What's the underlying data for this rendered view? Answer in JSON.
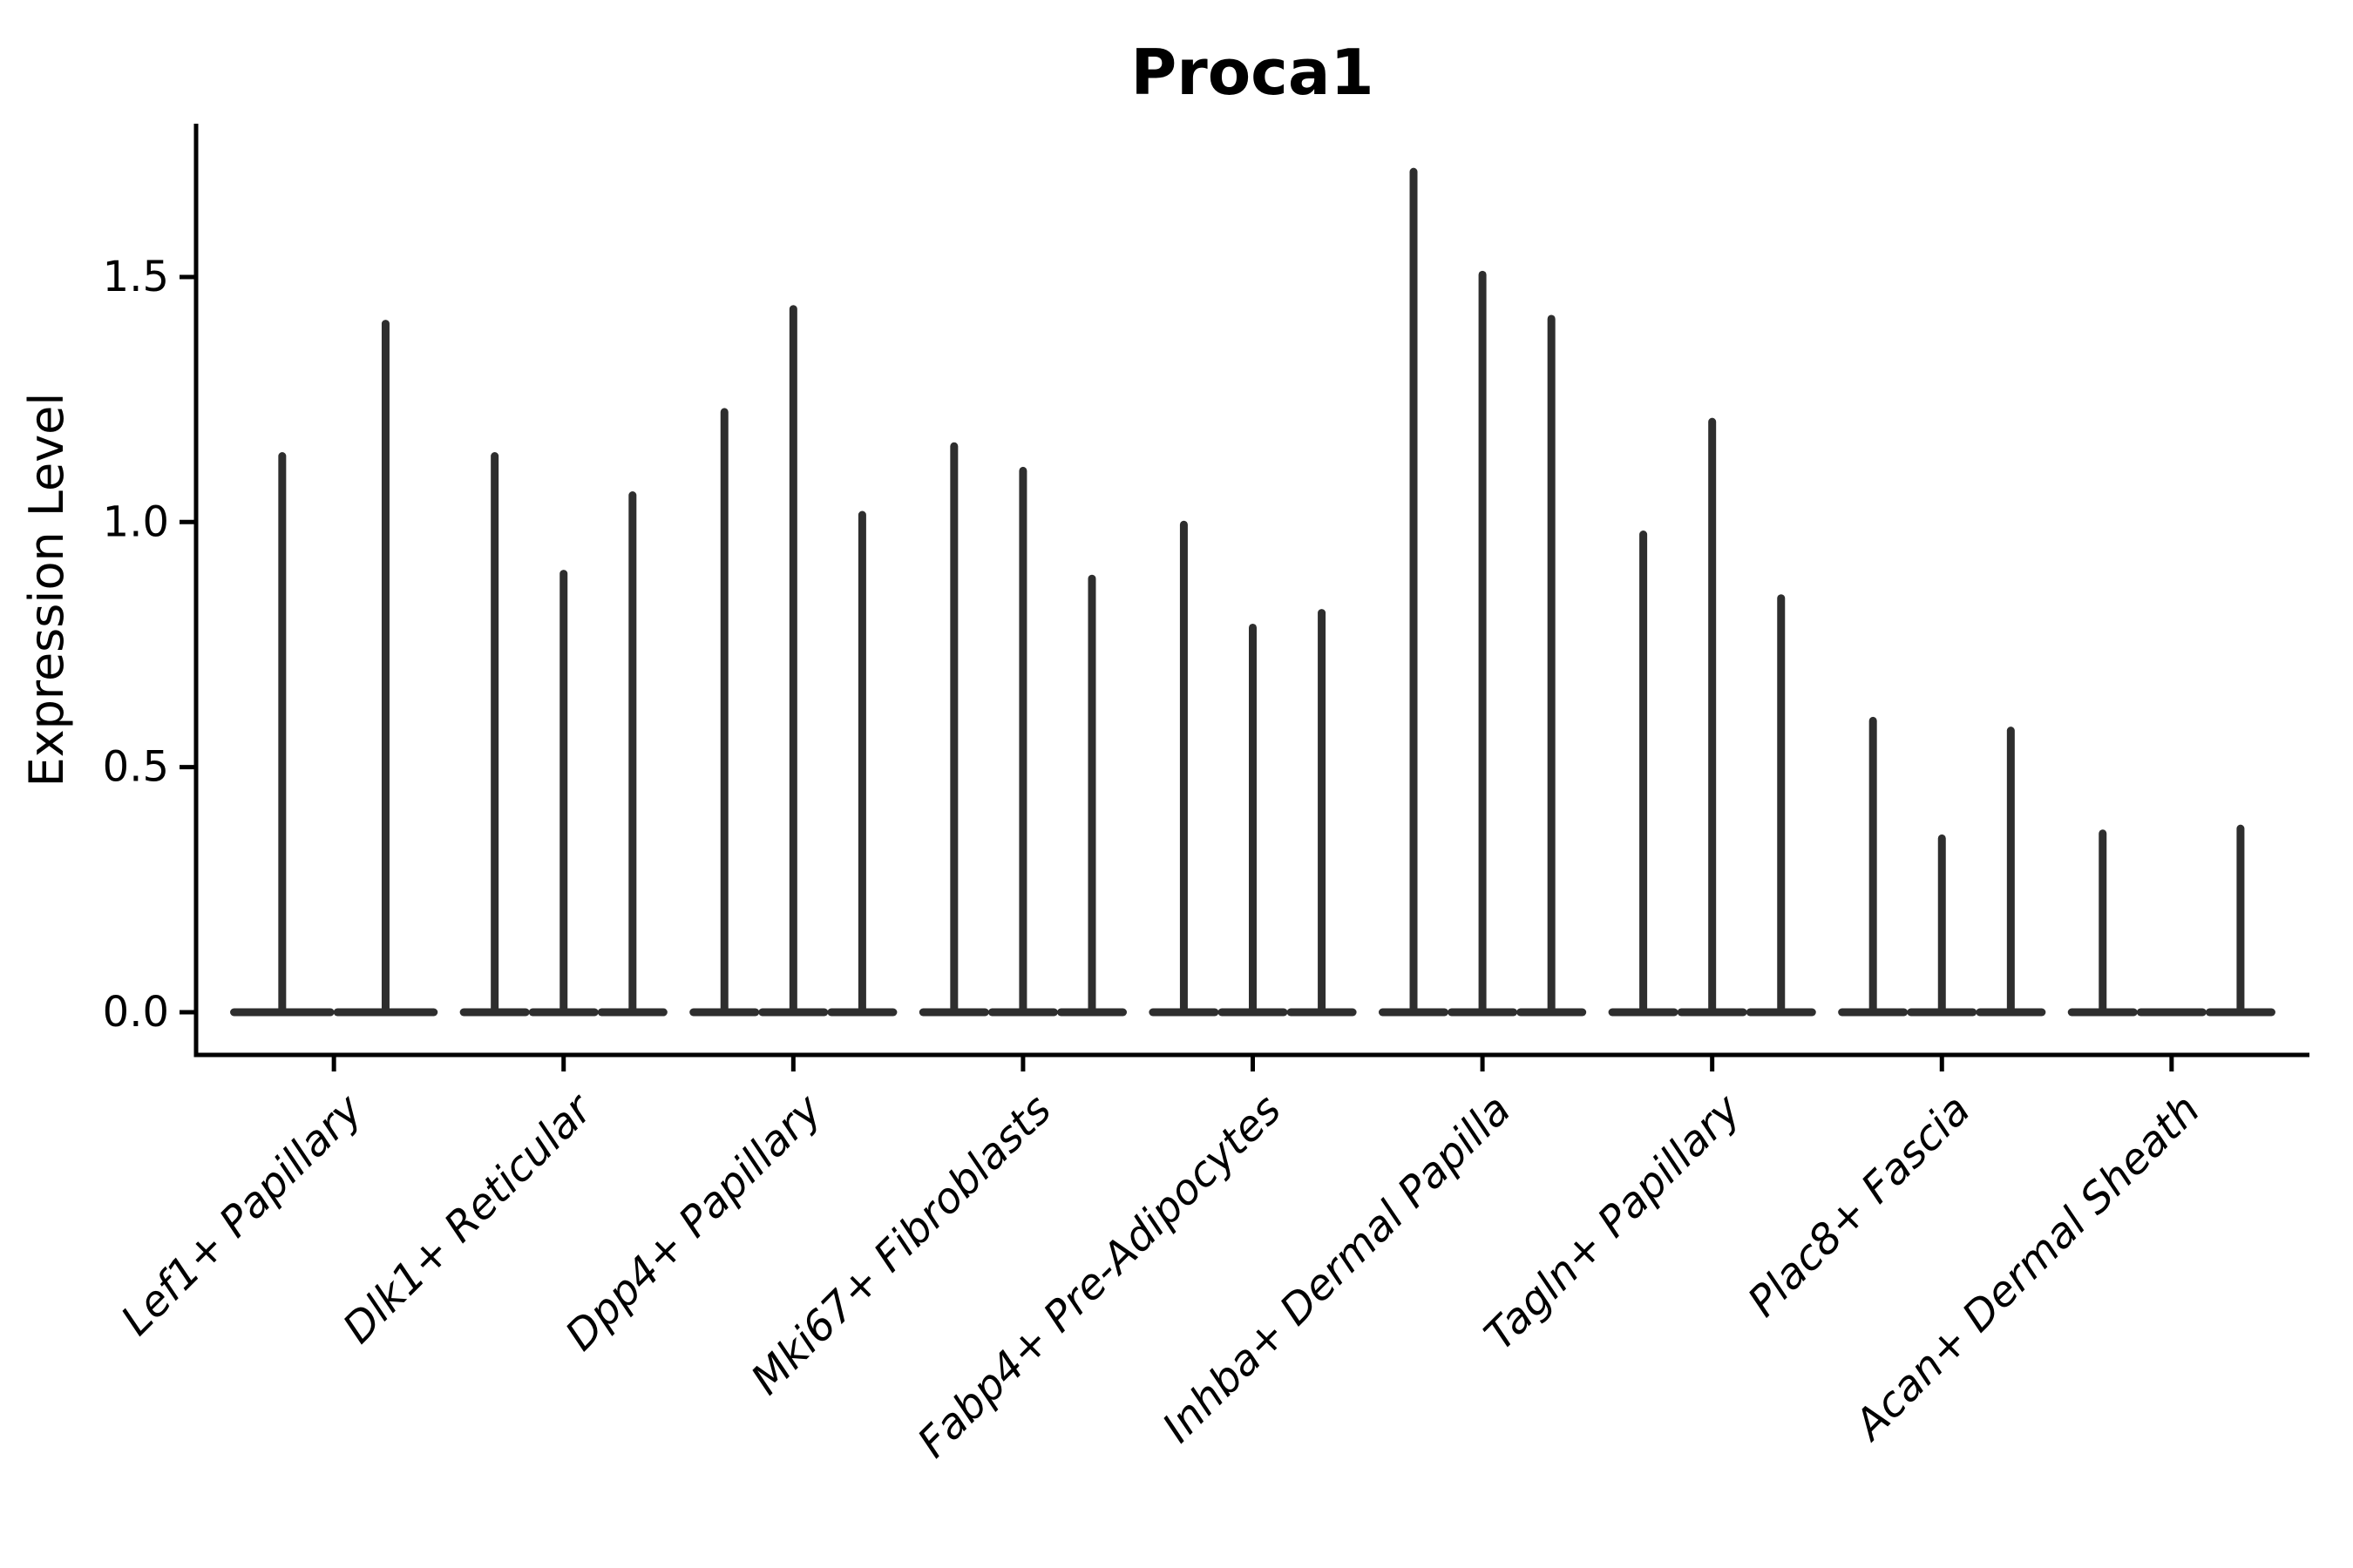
{
  "figure": {
    "background": "#ffffff",
    "axis_color": "#000000",
    "violin_color": "#2e2e2e"
  },
  "chart_data": {
    "type": "violin",
    "title": "Proca1",
    "xlabel": "",
    "ylabel": "Expression Level",
    "grid": false,
    "legend": "none",
    "ylim": [
      -0.087,
      1.813
    ],
    "xlim_units": [
      0.4,
      9.6
    ],
    "group_width_units": 0.9,
    "yticks": [
      {
        "label": "0.0",
        "value": 0.0
      },
      {
        "label": "0.5",
        "value": 0.5
      },
      {
        "label": "1.0",
        "value": 1.0
      },
      {
        "label": "1.5",
        "value": 1.5
      }
    ],
    "categories": [
      "Lef1+ Papillary",
      "Dlk1+ Reticular",
      "Dpp4+ Papillary",
      "Mki67+ Fibroblasts",
      "Fabp4+ Pre-Adipocytes",
      "Inhba+ Dermal Papilla",
      "Tagln+ Papillary",
      "Plac8+ Fascia",
      "Acan+ Dermal Sheath"
    ],
    "groups": [
      {
        "label": "Lef1+ Papillary",
        "violin_maxima": [
          1.14,
          1.41
        ]
      },
      {
        "label": "Dlk1+ Reticular",
        "violin_maxima": [
          1.14,
          0.9,
          1.06
        ]
      },
      {
        "label": "Dpp4+ Papillary",
        "violin_maxima": [
          1.23,
          1.44,
          1.02
        ]
      },
      {
        "label": "Mki67+ Fibroblasts",
        "violin_maxima": [
          1.16,
          1.11,
          0.89
        ]
      },
      {
        "label": "Fabp4+ Pre-Adipocytes",
        "violin_maxima": [
          1.0,
          0.79,
          0.82
        ]
      },
      {
        "label": "Inhba+ Dermal Papilla",
        "violin_maxima": [
          1.72,
          1.51,
          1.42
        ]
      },
      {
        "label": "Tagln+ Papillary",
        "violin_maxima": [
          0.98,
          1.21,
          0.85
        ]
      },
      {
        "label": "Plac8+ Fascia",
        "violin_maxima": [
          0.6,
          0.36,
          0.58
        ]
      },
      {
        "label": "Acan+ Dermal Sheath",
        "violin_maxima": [
          0.37,
          0.0,
          0.38
        ]
      }
    ],
    "note": "Violins are needle-thin: each shows a flat base at expression 0 and a thin spike up to its maximum expression value."
  }
}
